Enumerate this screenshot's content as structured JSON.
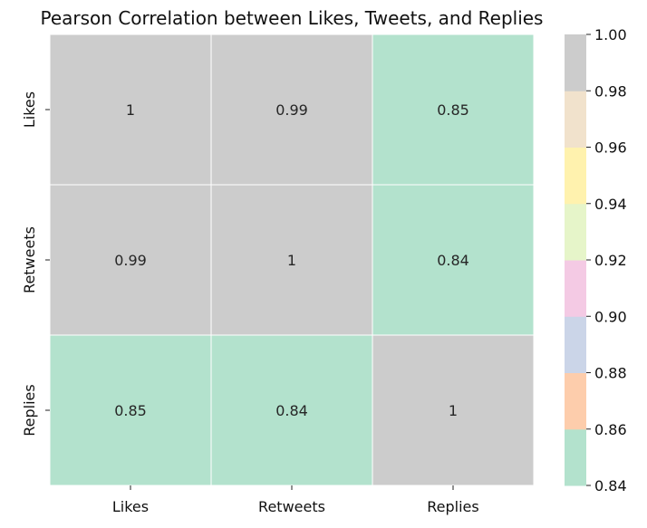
{
  "chart_data": {
    "type": "heatmap",
    "title": "Pearson Correlation between Likes, Tweets, and Replies",
    "x_categories": [
      "Likes",
      "Retweets",
      "Replies"
    ],
    "y_categories": [
      "Likes",
      "Retweets",
      "Replies"
    ],
    "matrix": [
      [
        1,
        0.99,
        0.85
      ],
      [
        0.99,
        1,
        0.84
      ],
      [
        0.85,
        0.84,
        1
      ]
    ],
    "annotations": [
      [
        "1",
        "0.99",
        "0.85"
      ],
      [
        "0.99",
        "1",
        "0.84"
      ],
      [
        "0.85",
        "0.84",
        "1"
      ]
    ],
    "colorbar": {
      "range": [
        0.84,
        1.0
      ],
      "ticks": [
        "0.84",
        "0.86",
        "0.88",
        "0.90",
        "0.92",
        "0.94",
        "0.96",
        "0.98",
        "1.00"
      ],
      "colormap": "Pastel2",
      "bins": [
        "#b3e2cd",
        "#fdcdac",
        "#cbd5e8",
        "#f4cae4",
        "#e6f5c9",
        "#fff2ae",
        "#f1e2cc",
        "#cccccc"
      ]
    },
    "cell_border_color": "#ffffff"
  }
}
